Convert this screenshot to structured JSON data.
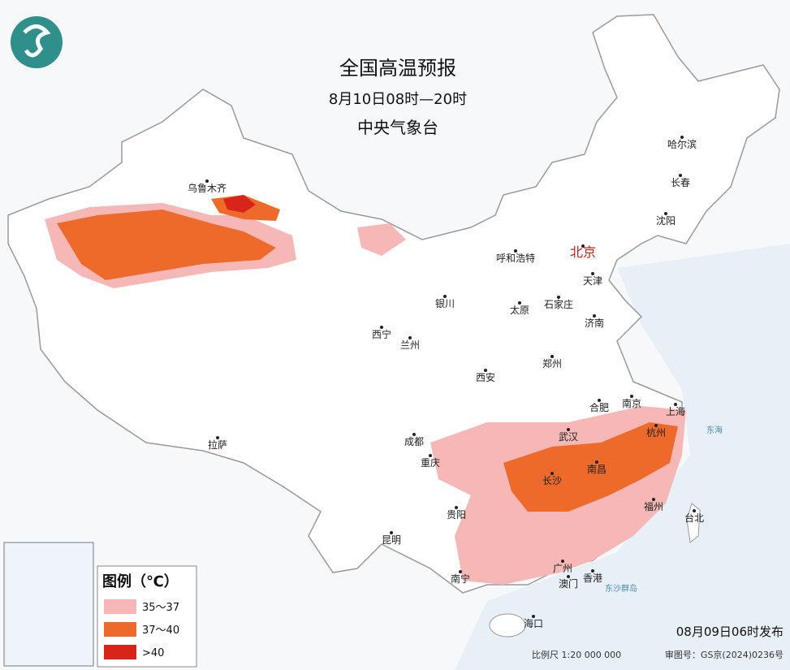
{
  "header": {
    "title": "全国高温预报",
    "subtitle": "8月10日08时—20时",
    "issuer": "中央气象台"
  },
  "cities": [
    "乌鲁木齐",
    "哈尔滨",
    "长春",
    "沈阳",
    "北京",
    "天津",
    "呼和浩特",
    "石家庄",
    "太原",
    "济南",
    "银川",
    "西宁",
    "兰州",
    "郑州",
    "西安",
    "合肥",
    "南京",
    "上海",
    "杭州",
    "武汉",
    "成都",
    "重庆",
    "长沙",
    "南昌",
    "拉萨",
    "贵阳",
    "福州",
    "台北",
    "昆明",
    "南宁",
    "广州",
    "澳门",
    "香港",
    "海口"
  ],
  "places": [
    "东海",
    "东沙群岛"
  ],
  "legend": {
    "title": "图例（℃）",
    "items": [
      {
        "label": "35～37",
        "color": "#f5b8b6"
      },
      {
        "label": "37～40",
        "color": "#ee6a2a"
      },
      {
        "label": ">40",
        "color": "#d9241c"
      }
    ]
  },
  "footer": {
    "issued": "08月09日06时发布",
    "scale": "比例尺 1:20 000 000",
    "review": "审图号：GS京(2024)0236号"
  }
}
